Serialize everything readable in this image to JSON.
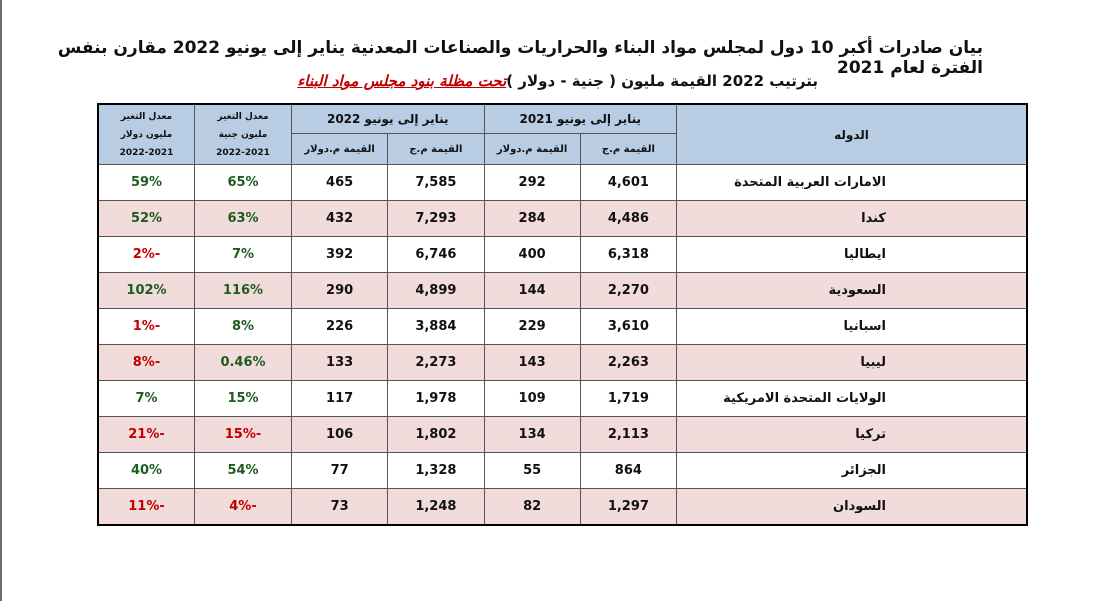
{
  "title": "بيان صادرات أكبر 10 دول لمجلس مواد البناء والحراريات والصناعات المعدنية يناير إلى يونيو 2022 مقارن بنفس الفترة لعام 2021",
  "subtitle": "بترتيب  2022  القيمة مليون ( جنية - دولار )",
  "subtitle_red": "تحت مظلة بنود مجلس مواد البناء",
  "colors": {
    "header_bg": "#b8cce4",
    "alt_row_bg": "#f2dcdb",
    "positive": "#1e5c1e",
    "negative": "#c00000"
  },
  "table": {
    "header": {
      "country": "الدوله",
      "period_2021": "يناير إلى يونيو 2021",
      "period_2022": "يناير إلى يونيو 2022",
      "value_egp": "القيمة م.ج",
      "value_usd": "القيمة م.دولار",
      "rate_egp_line1": "معدل التغير",
      "rate_egp_line2": "مليون جنية",
      "rate_egp_line3": "2022-2021",
      "rate_usd_line1": "معدل التغير",
      "rate_usd_line2": "مليون دولار",
      "rate_usd_line3": "2022-2021"
    },
    "rows": [
      {
        "country": "الامارات العربية المتحدة",
        "egp_2021": "4,601",
        "usd_2021": "292",
        "egp_2022": "7,585",
        "usd_2022": "465",
        "rate_egp": "65%",
        "rate_usd": "59%"
      },
      {
        "country": "كندا",
        "egp_2021": "4,486",
        "usd_2021": "284",
        "egp_2022": "7,293",
        "usd_2022": "432",
        "rate_egp": "63%",
        "rate_usd": "52%"
      },
      {
        "country": "ايطاليا",
        "egp_2021": "6,318",
        "usd_2021": "400",
        "egp_2022": "6,746",
        "usd_2022": "392",
        "rate_egp": "7%",
        "rate_usd": "-2%"
      },
      {
        "country": "السعودية",
        "egp_2021": "2,270",
        "usd_2021": "144",
        "egp_2022": "4,899",
        "usd_2022": "290",
        "rate_egp": "116%",
        "rate_usd": "102%"
      },
      {
        "country": "اسبانيا",
        "egp_2021": "3,610",
        "usd_2021": "229",
        "egp_2022": "3,884",
        "usd_2022": "226",
        "rate_egp": "8%",
        "rate_usd": "-1%"
      },
      {
        "country": "ليبيا",
        "egp_2021": "2,263",
        "usd_2021": "143",
        "egp_2022": "2,273",
        "usd_2022": "133",
        "rate_egp": "0.46%",
        "rate_usd": "-8%"
      },
      {
        "country": "الولايات المتحدة الامريكية",
        "egp_2021": "1,719",
        "usd_2021": "109",
        "egp_2022": "1,978",
        "usd_2022": "117",
        "rate_egp": "15%",
        "rate_usd": "7%"
      },
      {
        "country": "تركيا",
        "egp_2021": "2,113",
        "usd_2021": "134",
        "egp_2022": "1,802",
        "usd_2022": "106",
        "rate_egp": "-15%",
        "rate_usd": "-21%"
      },
      {
        "country": "الجزائر",
        "egp_2021": "864",
        "usd_2021": "55",
        "egp_2022": "1,328",
        "usd_2022": "77",
        "rate_egp": "54%",
        "rate_usd": "40%"
      },
      {
        "country": "السودان",
        "egp_2021": "1,297",
        "usd_2021": "82",
        "egp_2022": "1,248",
        "usd_2022": "73",
        "rate_egp": "-4%",
        "rate_usd": "-11%"
      }
    ]
  }
}
